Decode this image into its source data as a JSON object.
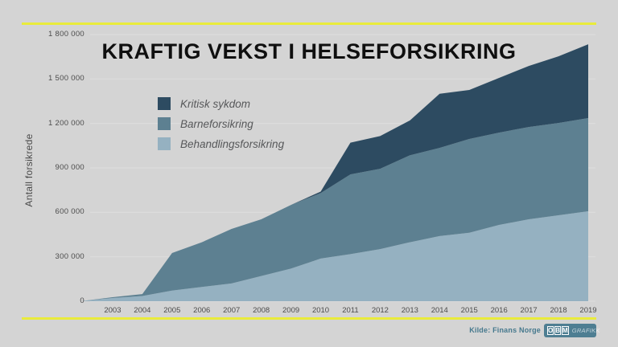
{
  "title": "KRAFTIG VEKST I HELSEFORSIKRING",
  "chart_data": {
    "type": "area",
    "stacked": true,
    "title": "KRAFTIG VEKST I HELSEFORSIKRING",
    "ylabel": "Antall forsikrede",
    "ylim": [
      0,
      1800000
    ],
    "grid": true,
    "legend_position": "inside-top-left",
    "x": [
      2002,
      2003,
      2004,
      2005,
      2006,
      2007,
      2008,
      2009,
      2010,
      2011,
      2012,
      2013,
      2014,
      2015,
      2016,
      2017,
      2018,
      2019
    ],
    "x_tick_labels": [
      "2003",
      "2004",
      "2005",
      "2006",
      "2007",
      "2008",
      "2009",
      "2010",
      "2011",
      "2012",
      "2013",
      "2014",
      "2015",
      "2016",
      "2017",
      "2018",
      "2019"
    ],
    "y_ticks": [
      0,
      300000,
      600000,
      900000,
      1200000,
      1500000,
      1800000
    ],
    "y_tick_labels": [
      "0",
      "300 000",
      "600 000",
      "900 000",
      "1 200 000",
      "1 500 000",
      "1 800 000"
    ],
    "series": [
      {
        "id": "behandlingsforsikring",
        "name": "Behandlingsforsikring",
        "color": "#95b1c1",
        "values": [
          2000,
          22000,
          35000,
          72000,
          96000,
          120000,
          170000,
          220000,
          288000,
          318000,
          352000,
          398000,
          440000,
          462000,
          515000,
          553000,
          580000,
          607000
        ]
      },
      {
        "id": "barneforsikring",
        "name": "Barneforsikring",
        "color": "#5d8091",
        "values": [
          0,
          5000,
          13000,
          253000,
          302000,
          368000,
          383000,
          430000,
          442000,
          538000,
          542000,
          587000,
          595000,
          633000,
          623000,
          623000,
          623000,
          629000
        ]
      },
      {
        "id": "kritisk-sykdom",
        "name": "Kritisk sykdom",
        "color": "#2d4b61",
        "values": [
          0,
          0,
          0,
          0,
          0,
          0,
          0,
          0,
          10000,
          214000,
          221000,
          235000,
          365000,
          331000,
          369000,
          412000,
          450000,
          498000
        ]
      }
    ]
  },
  "footer": {
    "source": "Kilde: Finans Norge",
    "logo_letters": [
      "O",
      "B",
      "M"
    ],
    "logo_suffix": "GRAFIKK"
  },
  "colors": {
    "background": "#d4d4d4",
    "accent_line": "#e9eb3b",
    "gridline": "#dedede",
    "kritisk_sykdom": "#2d4b61",
    "barneforsikring": "#5d8091",
    "behandlingsforsikring": "#95b1c1"
  }
}
